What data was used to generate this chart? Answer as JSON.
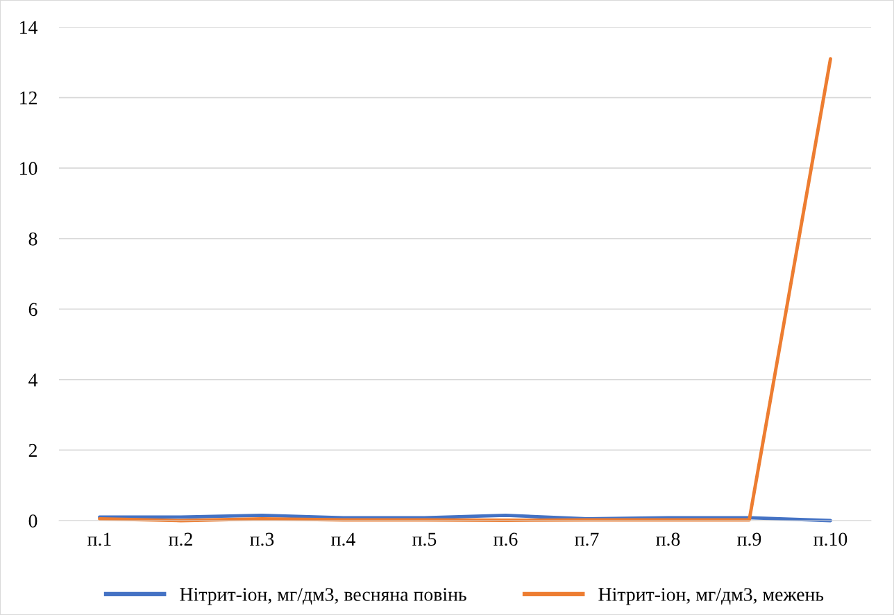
{
  "chart_data": {
    "type": "line",
    "categories": [
      "п.1",
      "п.2",
      "п.3",
      "п.4",
      "п.5",
      "п.6",
      "п.7",
      "п.8",
      "п.9",
      "п.10"
    ],
    "series": [
      {
        "name": "Нітрит-іон, мг/дм3, весняна повінь",
        "color": "#4472c4",
        "values": [
          0.1,
          0.1,
          0.15,
          0.08,
          0.08,
          0.15,
          0.05,
          0.08,
          0.08,
          0.0
        ]
      },
      {
        "name": "Нітрит-іон, мг/дм3, межень",
        "color": "#ed7d31",
        "values": [
          0.05,
          0.0,
          0.05,
          0.02,
          0.02,
          0.01,
          0.02,
          0.02,
          0.02,
          13.1
        ]
      }
    ],
    "ylim": [
      0,
      14
    ],
    "yticks": [
      0,
      2,
      4,
      6,
      8,
      10,
      12,
      14
    ],
    "grid": "y",
    "legend": "bottom",
    "marker": "none",
    "line_style": "solid"
  }
}
